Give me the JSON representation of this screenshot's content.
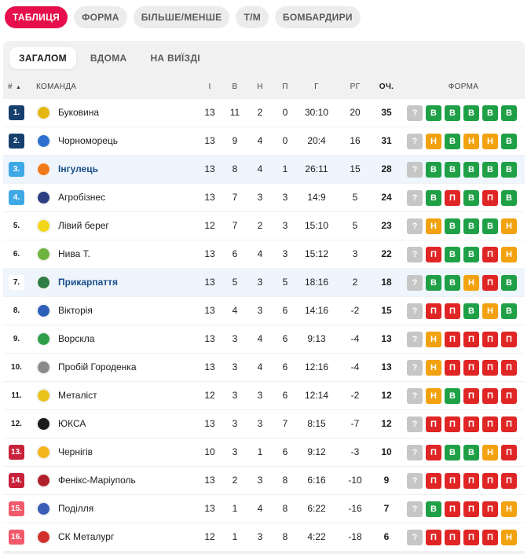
{
  "top_tabs": [
    "ТАБЛИЦЯ",
    "ФОРМА",
    "БІЛЬШЕ/МЕНШЕ",
    "Т/М",
    "БОМБАРДИРИ"
  ],
  "sub_tabs": [
    "ЗАГАЛОМ",
    "ВДОМА",
    "НА ВИЇЗДІ"
  ],
  "header": {
    "rank": "#",
    "sort_icon": "▲",
    "team": "КОМАНДА",
    "played": "І",
    "won": "В",
    "drawn": "Н",
    "lost": "П",
    "goals": "Г",
    "goal_diff": "РГ",
    "points": "ОЧ.",
    "form": "ФОРМА"
  },
  "colors": {
    "accent": "#e60f4b",
    "promotion": "#163f6e",
    "playoff": "#3fa9e6",
    "relegation_playoff": "#c8213a",
    "relegation": "#f05a6a",
    "win": "#1fa046",
    "draw": "#f2a20f",
    "loss": "#e02525",
    "unknown": "#c6c6c6"
  },
  "rows": [
    {
      "pos": "1.",
      "zone": "promotion",
      "team": "Буковина",
      "logo_color": "#e6b70f",
      "p": "13",
      "w": "11",
      "d": "2",
      "l": "0",
      "g": "30:10",
      "gd": "20",
      "pts": "35",
      "form": [
        "?",
        "В",
        "В",
        "В",
        "В",
        "В"
      ],
      "highlight": false
    },
    {
      "pos": "2.",
      "zone": "promotion",
      "team": "Чорноморець",
      "logo_color": "#2c6fd1",
      "p": "13",
      "w": "9",
      "d": "4",
      "l": "0",
      "g": "20:4",
      "gd": "16",
      "pts": "31",
      "form": [
        "?",
        "Н",
        "В",
        "Н",
        "Н",
        "В"
      ],
      "highlight": false
    },
    {
      "pos": "3.",
      "zone": "playoff",
      "team": "Інгулець",
      "logo_color": "#f07a1a",
      "p": "13",
      "w": "8",
      "d": "4",
      "l": "1",
      "g": "26:11",
      "gd": "15",
      "pts": "28",
      "form": [
        "?",
        "В",
        "В",
        "В",
        "В",
        "В"
      ],
      "highlight": true
    },
    {
      "pos": "4.",
      "zone": "playoff",
      "team": "Агробізнес",
      "logo_color": "#2b3f80",
      "p": "13",
      "w": "7",
      "d": "3",
      "l": "3",
      "g": "14:9",
      "gd": "5",
      "pts": "24",
      "form": [
        "?",
        "В",
        "П",
        "В",
        "П",
        "В"
      ],
      "highlight": false
    },
    {
      "pos": "5.",
      "zone": "none",
      "team": "Лівий берег",
      "logo_color": "#f2d61a",
      "p": "12",
      "w": "7",
      "d": "2",
      "l": "3",
      "g": "15:10",
      "gd": "5",
      "pts": "23",
      "form": [
        "?",
        "Н",
        "В",
        "В",
        "В",
        "Н"
      ],
      "highlight": false
    },
    {
      "pos": "6.",
      "zone": "none",
      "team": "Нива Т.",
      "logo_color": "#6db33f",
      "p": "13",
      "w": "6",
      "d": "4",
      "l": "3",
      "g": "15:12",
      "gd": "3",
      "pts": "22",
      "form": [
        "?",
        "П",
        "В",
        "В",
        "П",
        "Н"
      ],
      "highlight": false
    },
    {
      "pos": "7.",
      "zone": "none",
      "team": "Прикарпаття",
      "logo_color": "#2e7d46",
      "p": "13",
      "w": "5",
      "d": "3",
      "l": "5",
      "g": "18:16",
      "gd": "2",
      "pts": "18",
      "form": [
        "?",
        "В",
        "В",
        "Н",
        "П",
        "В"
      ],
      "highlight": true
    },
    {
      "pos": "8.",
      "zone": "none",
      "team": "Вікторія",
      "logo_color": "#2c5fb8",
      "p": "13",
      "w": "4",
      "d": "3",
      "l": "6",
      "g": "14:16",
      "gd": "-2",
      "pts": "15",
      "form": [
        "?",
        "П",
        "П",
        "В",
        "Н",
        "В"
      ],
      "highlight": false
    },
    {
      "pos": "9.",
      "zone": "none",
      "team": "Ворскла",
      "logo_color": "#2fa04a",
      "p": "13",
      "w": "3",
      "d": "4",
      "l": "6",
      "g": "9:13",
      "gd": "-4",
      "pts": "13",
      "form": [
        "?",
        "Н",
        "П",
        "П",
        "П",
        "П"
      ],
      "highlight": false
    },
    {
      "pos": "10.",
      "zone": "none",
      "team": "Пробій Городенка",
      "logo_color": "#8a8a8a",
      "p": "13",
      "w": "3",
      "d": "4",
      "l": "6",
      "g": "12:16",
      "gd": "-4",
      "pts": "13",
      "form": [
        "?",
        "Н",
        "П",
        "П",
        "П",
        "П"
      ],
      "highlight": false
    },
    {
      "pos": "11.",
      "zone": "none",
      "team": "Металіст",
      "logo_color": "#e8c21a",
      "p": "12",
      "w": "3",
      "d": "3",
      "l": "6",
      "g": "12:14",
      "gd": "-2",
      "pts": "12",
      "form": [
        "?",
        "Н",
        "В",
        "П",
        "П",
        "П"
      ],
      "highlight": false
    },
    {
      "pos": "12.",
      "zone": "none",
      "team": "ЮКСА",
      "logo_color": "#1c1c1c",
      "p": "13",
      "w": "3",
      "d": "3",
      "l": "7",
      "g": "8:15",
      "gd": "-7",
      "pts": "12",
      "form": [
        "?",
        "П",
        "П",
        "П",
        "П",
        "П"
      ],
      "highlight": false
    },
    {
      "pos": "13.",
      "zone": "relegation_playoff",
      "team": "Чернігів",
      "logo_color": "#f2b51a",
      "p": "10",
      "w": "3",
      "d": "1",
      "l": "6",
      "g": "9:12",
      "gd": "-3",
      "pts": "10",
      "form": [
        "?",
        "П",
        "В",
        "В",
        "Н",
        "П"
      ],
      "highlight": false
    },
    {
      "pos": "14.",
      "zone": "relegation_playoff",
      "team": "Фенікс-Маріуполь",
      "logo_color": "#b0202a",
      "p": "13",
      "w": "2",
      "d": "3",
      "l": "8",
      "g": "6:16",
      "gd": "-10",
      "pts": "9",
      "form": [
        "?",
        "П",
        "П",
        "П",
        "П",
        "П"
      ],
      "highlight": false
    },
    {
      "pos": "15.",
      "zone": "relegation",
      "team": "Поділля",
      "logo_color": "#3a5db8",
      "p": "13",
      "w": "1",
      "d": "4",
      "l": "8",
      "g": "6:22",
      "gd": "-16",
      "pts": "7",
      "form": [
        "?",
        "В",
        "П",
        "П",
        "П",
        "Н"
      ],
      "highlight": false
    },
    {
      "pos": "16.",
      "zone": "relegation",
      "team": "СК Металург",
      "logo_color": "#d0312d",
      "p": "12",
      "w": "1",
      "d": "3",
      "l": "8",
      "g": "4:22",
      "gd": "-18",
      "pts": "6",
      "form": [
        "?",
        "П",
        "П",
        "П",
        "П",
        "Н"
      ],
      "highlight": false
    }
  ]
}
